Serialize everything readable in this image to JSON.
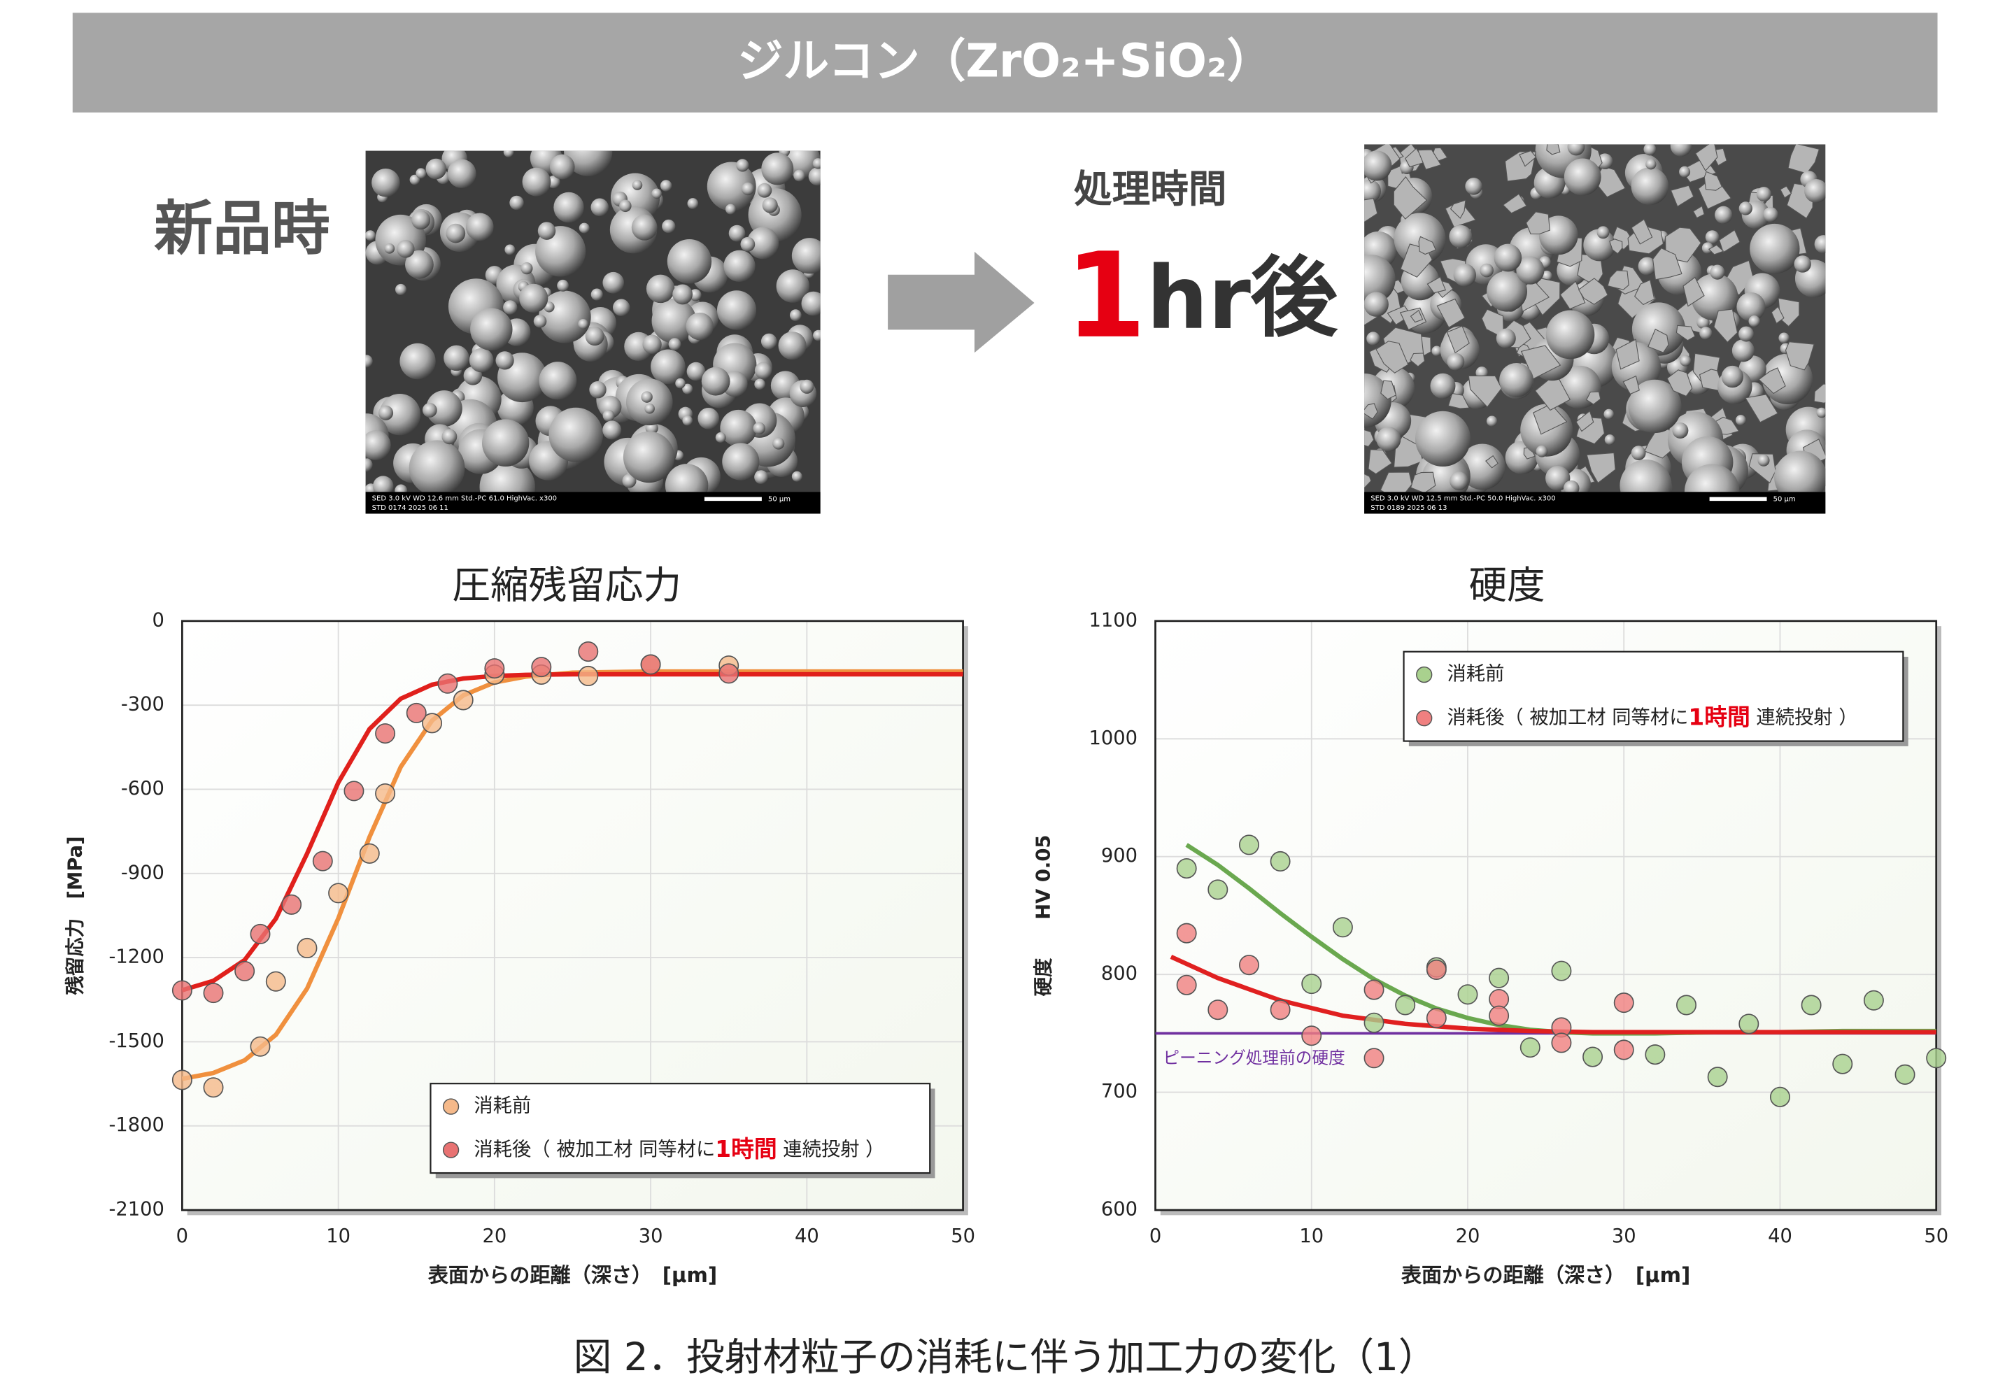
{
  "header": {
    "title": "ジルコン（ZrO₂+SiO₂）"
  },
  "before": {
    "label": "新品時",
    "image_info": {
      "line1": "SED   3.0 kV   WD 12.6 mm   Std.-PC 61.0   HighVac.   x300",
      "line2": "STD   0174   2025 06 11",
      "scale": "50 μm"
    }
  },
  "after": {
    "time_label": "処理時間",
    "duration": "1",
    "suffix": "hr後",
    "image_info": {
      "line1": "SED   3.0 kV   WD 12.5 mm   Std.-PC 50.0   HighVac.   x300",
      "line2": "STD   0189   2025 06 13",
      "scale": "50 μm"
    }
  },
  "chart_data": [
    {
      "type": "scatter",
      "title": "圧縮残留応力",
      "xlabel": "表面からの距離（深さ）　[μm]",
      "ylabel": "残留応力　[MPa]",
      "xlim": [
        0,
        50
      ],
      "ylim": [
        -2100,
        0
      ],
      "xticks": [
        0,
        10,
        20,
        30,
        40,
        50
      ],
      "yticks": [
        -2100,
        -1800,
        -1500,
        -1200,
        -900,
        -600,
        -300,
        0
      ],
      "grid": true,
      "legend": "lower right",
      "name_highlight": {
        "text": "1時間",
        "color": "#e60012"
      },
      "series": [
        {
          "name": "消耗前",
          "color": "#f5b98a",
          "x": [
            0,
            2,
            5,
            6,
            8,
            10,
            12,
            13,
            16,
            18,
            20,
            23,
            26,
            30,
            35
          ],
          "values": [
            -1636,
            -1663,
            -1517,
            -1285,
            -1166,
            -970,
            -829,
            -615,
            -364,
            -282,
            -191,
            -191,
            -196,
            -155,
            -159
          ],
          "fit": {
            "color": "#f0903e",
            "x": [
              0,
              2,
              4,
              6,
              8,
              10,
              12,
              14,
              16,
              18,
              20,
              22,
              25,
              30,
              40,
              50
            ],
            "values": [
              -1632,
              -1611,
              -1566,
              -1475,
              -1310,
              -1060,
              -770,
              -520,
              -355,
              -265,
              -219,
              -198,
              -184,
              -180,
              -180,
              -180
            ]
          }
        },
        {
          "name": "消耗後（ 被加工材 同等材に1時間 連続投射 ）",
          "color": "#e87272",
          "x": [
            0,
            2,
            4,
            5,
            7,
            9,
            11,
            13,
            15,
            17,
            20,
            23,
            26,
            30,
            35
          ],
          "values": [
            -1317,
            -1326,
            -1248,
            -1116,
            -1011,
            -856,
            -606,
            -401,
            -328,
            -223,
            -169,
            -164,
            -109,
            -155,
            -187
          ],
          "fit": {
            "color": "#e0201c",
            "x": [
              0,
              2,
              4,
              6,
              8,
              10,
              12,
              14,
              16,
              18,
              20,
              22,
              25,
              30,
              40,
              50
            ],
            "values": [
              -1316,
              -1283,
              -1209,
              -1061,
              -829,
              -576,
              -385,
              -277,
              -227,
              -205,
              -196,
              -192,
              -190,
              -190,
              -190,
              -190
            ]
          }
        }
      ]
    },
    {
      "type": "scatter",
      "title": "硬度",
      "xlabel": "表面からの距離（深さ）　[μm]",
      "ylabel": "硬度　　HV 0.05",
      "xlim": [
        0,
        50
      ],
      "ylim": [
        600,
        1100
      ],
      "xticks": [
        0,
        10,
        20,
        30,
        40,
        50
      ],
      "yticks": [
        600,
        700,
        800,
        900,
        1000,
        1100
      ],
      "grid": true,
      "legend": "upper right",
      "name_highlight": {
        "text": "1時間",
        "color": "#e60012"
      },
      "reference": {
        "value": 750,
        "label": "ピーニング処理前の硬度",
        "color": "#7030a0"
      },
      "series": [
        {
          "name": "消耗前",
          "color": "#a9d18e",
          "x": [
            2,
            4,
            6,
            8,
            10,
            12,
            14,
            16,
            18,
            20,
            22,
            24,
            26,
            28,
            32,
            34,
            36,
            38,
            40,
            42,
            44,
            46,
            48,
            50
          ],
          "values": [
            890,
            872,
            910,
            896,
            792,
            840,
            759,
            774,
            806,
            783,
            797,
            738,
            803,
            730,
            732,
            774,
            713,
            758,
            696,
            774,
            724,
            778,
            715,
            729
          ],
          "fit": {
            "color": "#6aa84f",
            "x": [
              2,
              4,
              6,
              8,
              10,
              12,
              14,
              16,
              18,
              20,
              22,
              24,
              26,
              28,
              30,
              32,
              36,
              40,
              44,
              50
            ],
            "values": [
              910,
              893,
              873,
              852,
              832,
              813,
              796,
              782,
              771,
              763,
              757,
              753,
              751,
              750,
              750,
              750,
              751,
              751,
              752,
              752
            ]
          }
        },
        {
          "name": "消耗後（ 被加工材 同等材に1時間 連続投射 ）",
          "color": "#f08080",
          "x": [
            2,
            2,
            4,
            6,
            8,
            10,
            14,
            14,
            18,
            18,
            22,
            22,
            26,
            26,
            30,
            30
          ],
          "values": [
            835,
            791,
            770,
            808,
            770,
            748,
            787,
            729,
            804,
            763,
            779,
            765,
            755,
            742,
            776,
            736
          ],
          "fit": {
            "color": "#e02020",
            "x": [
              1,
              4,
              8,
              12,
              16,
              20,
              24,
              28,
              32,
              40,
              50
            ],
            "values": [
              815,
              797,
              778,
              765,
              758,
              754,
              752,
              751,
              751,
              751,
              751
            ]
          }
        }
      ]
    }
  ],
  "caption": "図 2．投射材粒子の消耗に伴う加工力の変化（1）"
}
